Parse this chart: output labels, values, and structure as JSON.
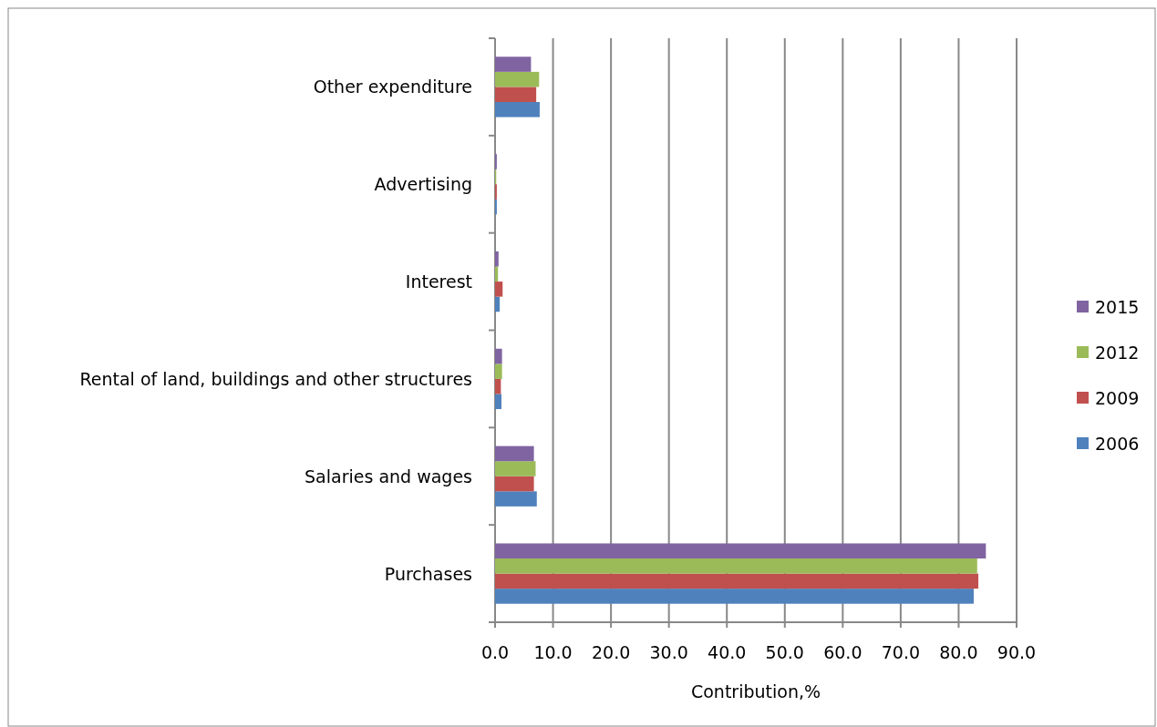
{
  "chart_data": {
    "type": "bar",
    "orientation": "horizontal",
    "xlabel": "Contribution,%",
    "categories": [
      "Other expenditure",
      "Advertising",
      "Interest",
      "Rental of land, buildings and other structures",
      "Salaries and wages",
      "Purchases"
    ],
    "series": [
      {
        "name": "2006",
        "color": "#4f81bd",
        "values": [
          7.7,
          0.3,
          0.8,
          1.1,
          7.2,
          82.6
        ]
      },
      {
        "name": "2009",
        "color": "#c0504d",
        "values": [
          7.1,
          0.3,
          1.3,
          1.0,
          6.7,
          83.4
        ]
      },
      {
        "name": "2012",
        "color": "#9bbb59",
        "values": [
          7.6,
          0.2,
          0.5,
          1.2,
          7.0,
          83.2
        ]
      },
      {
        "name": "2015",
        "color": "#8064a2",
        "values": [
          6.2,
          0.3,
          0.6,
          1.2,
          6.7,
          84.7
        ]
      }
    ],
    "xlim": [
      0,
      90
    ],
    "xticks": [
      {
        "value": 0,
        "label": "0.0"
      },
      {
        "value": 10,
        "label": "10.0"
      },
      {
        "value": 20,
        "label": "20.0"
      },
      {
        "value": 30,
        "label": "30.0"
      },
      {
        "value": 40,
        "label": "40.0"
      },
      {
        "value": 50,
        "label": "50.0"
      },
      {
        "value": 60,
        "label": "60.0"
      },
      {
        "value": 70,
        "label": "70.0"
      },
      {
        "value": 80,
        "label": "80.0"
      },
      {
        "value": 90,
        "label": "90.0"
      }
    ],
    "grid": "x",
    "legend": "right"
  }
}
